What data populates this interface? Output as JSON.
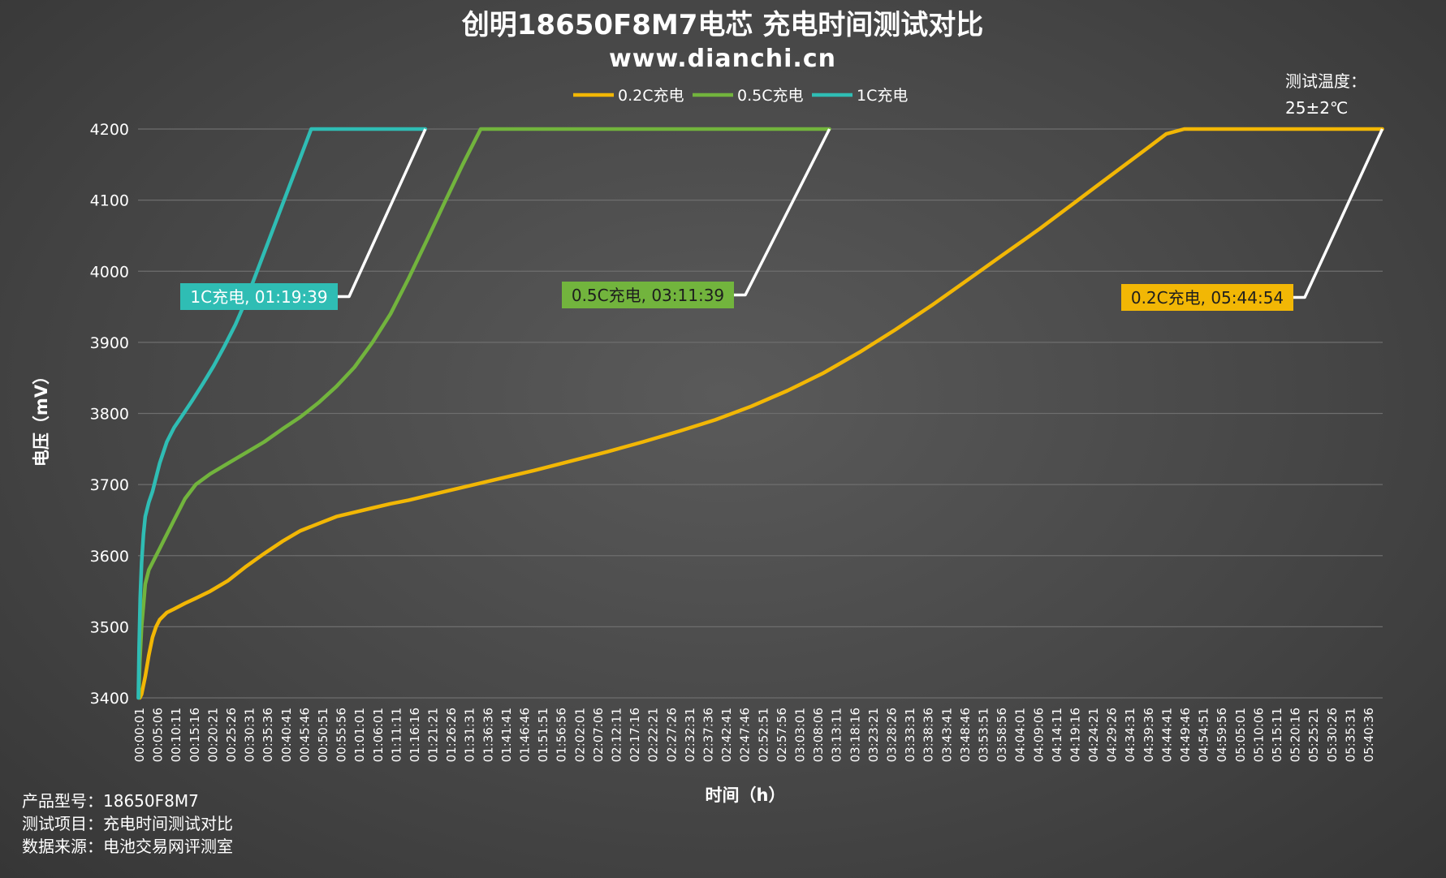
{
  "chart_data": {
    "type": "line",
    "title": "创明18650F8M7电芯 充电时间测试对比",
    "subtitle": "www.dianchi.cn",
    "xlabel": "时间（h）",
    "ylabel": "电压（mV）",
    "ylim": [
      3400,
      4200
    ],
    "yticks": [
      3400,
      3500,
      3600,
      3700,
      3800,
      3900,
      4000,
      4100,
      4200
    ],
    "grid": true,
    "legend_position": "top-center",
    "x_unit": "minutes",
    "xlim": [
      0,
      345
    ],
    "x_tick_labels": [
      "00:00:01",
      "00:05:06",
      "00:10:11",
      "00:15:16",
      "00:20:21",
      "00:25:26",
      "00:30:31",
      "00:35:36",
      "00:40:41",
      "00:45:46",
      "00:50:51",
      "00:55:56",
      "01:01:01",
      "01:06:01",
      "01:11:11",
      "01:16:16",
      "01:21:21",
      "01:26:26",
      "01:31:31",
      "01:36:36",
      "01:41:41",
      "01:46:46",
      "01:51:51",
      "01:56:56",
      "02:02:01",
      "02:07:06",
      "02:12:11",
      "02:17:16",
      "02:22:21",
      "02:27:26",
      "02:32:31",
      "02:37:36",
      "02:42:41",
      "02:47:46",
      "02:52:51",
      "02:57:56",
      "03:03:01",
      "03:08:06",
      "03:13:11",
      "03:18:16",
      "03:23:21",
      "03:28:26",
      "03:33:31",
      "03:38:36",
      "03:43:41",
      "03:48:46",
      "03:53:51",
      "03:58:56",
      "04:04:01",
      "04:09:06",
      "04:14:11",
      "04:19:16",
      "04:24:21",
      "04:29:26",
      "04:34:31",
      "04:39:36",
      "04:44:41",
      "04:49:46",
      "04:54:51",
      "04:59:56",
      "05:05:01",
      "05:10:06",
      "05:15:11",
      "05:20:16",
      "05:25:21",
      "05:30:26",
      "05:35:31",
      "05:40:36"
    ],
    "series": [
      {
        "name": "0.2C充电",
        "color": "#f2b705",
        "x": [
          0.5,
          1,
          2,
          3,
          4,
          5,
          6,
          8,
          10,
          13,
          16,
          20,
          25,
          30,
          35,
          40,
          45,
          50,
          55,
          60,
          65,
          70,
          75,
          80,
          90,
          100,
          110,
          120,
          130,
          140,
          150,
          160,
          170,
          180,
          190,
          200,
          210,
          220,
          230,
          240,
          250,
          260,
          265,
          270,
          275,
          280,
          285,
          290,
          295,
          300,
          305,
          310,
          315,
          320,
          325,
          330,
          335,
          340,
          344.9
        ],
        "y": [
          3400,
          3405,
          3430,
          3460,
          3485,
          3500,
          3510,
          3520,
          3525,
          3533,
          3540,
          3550,
          3565,
          3585,
          3603,
          3620,
          3635,
          3645,
          3655,
          3661,
          3667,
          3673,
          3678,
          3684,
          3696,
          3708,
          3720,
          3733,
          3746,
          3760,
          3775,
          3791,
          3810,
          3832,
          3857,
          3886,
          3918,
          3952,
          3988,
          4024,
          4060,
          4098,
          4117,
          4136,
          4155,
          4174,
          4193,
          4200,
          4200,
          4200,
          4200,
          4200,
          4200,
          4200,
          4200,
          4200,
          4200,
          4200,
          4200
        ]
      },
      {
        "name": "0.5C充电",
        "color": "#72b43d",
        "x": [
          0.2,
          0.5,
          1,
          1.5,
          2,
          3,
          4,
          5,
          6,
          8,
          10,
          13,
          16,
          20,
          25,
          30,
          35,
          40,
          45,
          50,
          55,
          60,
          65,
          70,
          75,
          80,
          85,
          90,
          95,
          100,
          105,
          110,
          120,
          130,
          140,
          150,
          160,
          170,
          180,
          191.65
        ],
        "y": [
          3400,
          3450,
          3500,
          3530,
          3560,
          3580,
          3590,
          3600,
          3610,
          3630,
          3650,
          3680,
          3700,
          3715,
          3730,
          3745,
          3760,
          3778,
          3795,
          3815,
          3838,
          3865,
          3900,
          3940,
          3990,
          4043,
          4097,
          4150,
          4200,
          4200,
          4200,
          4200,
          4200,
          4200,
          4200,
          4200,
          4200,
          4200,
          4200,
          4200
        ]
      },
      {
        "name": "1C充电",
        "color": "#2fbdb4",
        "x": [
          0.1,
          0.3,
          0.6,
          1,
          1.5,
          2,
          3,
          4,
          5,
          6,
          8,
          10,
          12,
          15,
          18,
          21,
          24,
          27,
          30,
          33,
          36,
          39,
          42,
          45,
          48,
          50,
          52,
          54,
          55,
          57,
          60,
          65,
          70,
          75,
          79.65
        ],
        "y": [
          3400,
          3470,
          3540,
          3590,
          3630,
          3655,
          3675,
          3690,
          3710,
          3730,
          3760,
          3780,
          3795,
          3818,
          3842,
          3867,
          3895,
          3925,
          3960,
          4000,
          4040,
          4080,
          4120,
          4160,
          4200,
          4200,
          4200,
          4200,
          4200,
          4200,
          4200,
          4200,
          4200,
          4200,
          4200
        ]
      }
    ],
    "annotations": [
      {
        "series": "1C充电",
        "label": "1C充电, 01:19:39",
        "x": 79.65,
        "y": 4200
      },
      {
        "series": "0.5C充电",
        "label": "0.5C充电, 03:11:39",
        "x": 191.65,
        "y": 4200
      },
      {
        "series": "0.2C充电",
        "label": "0.2C充电, 05:44:54",
        "x": 344.9,
        "y": 4200
      }
    ]
  },
  "notes": {
    "temperature_line1": "测试温度：",
    "temperature_line2": "25±2℃",
    "product": "产品型号：18650F8M7",
    "test_item": "测试项目：充电时间测试对比",
    "source": "数据来源：电池交易网评测室"
  }
}
